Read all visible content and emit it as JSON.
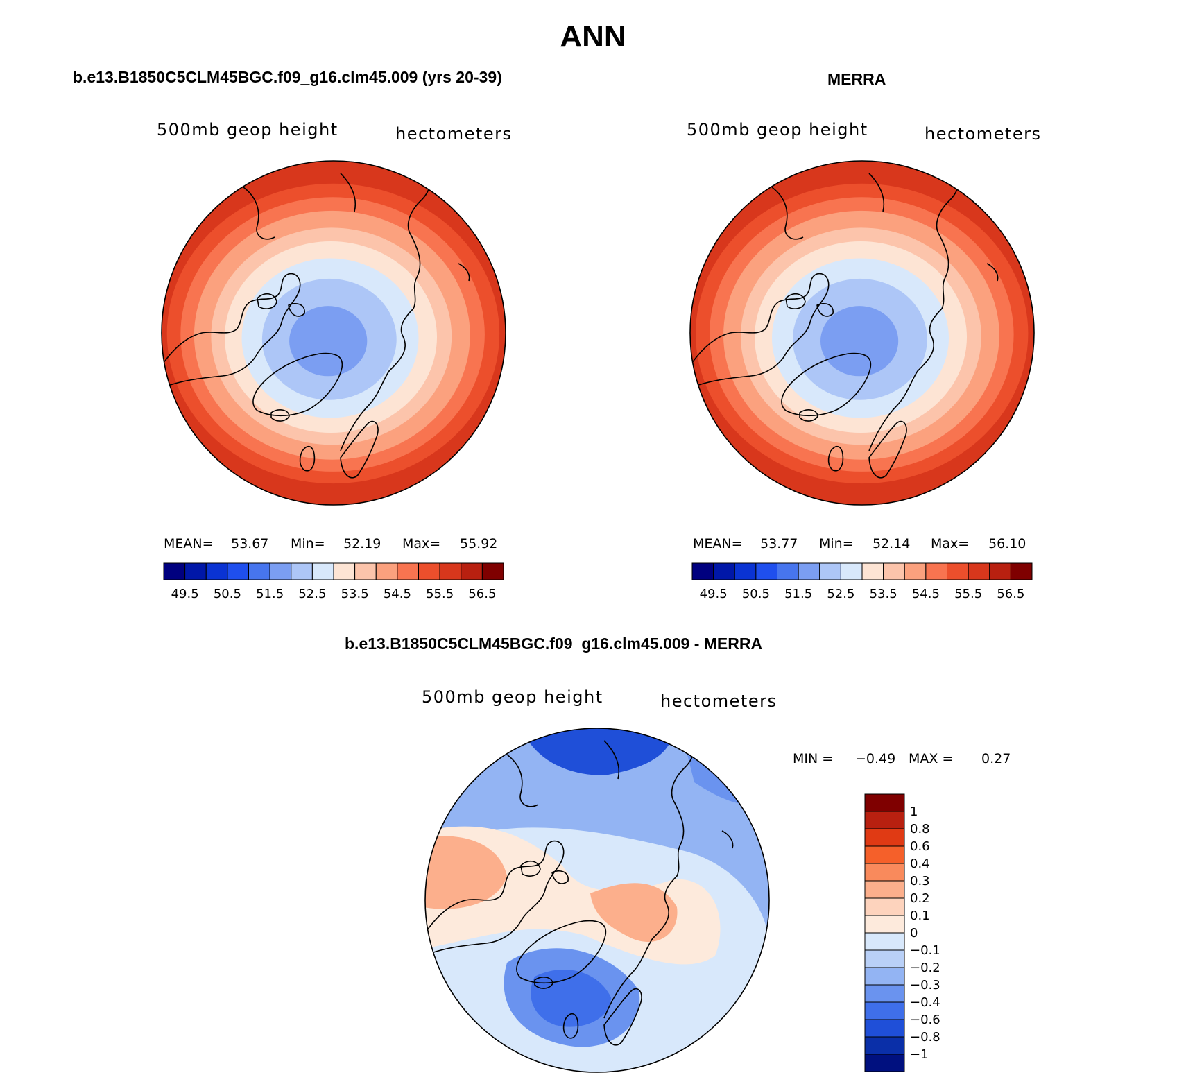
{
  "page": {
    "title": "ANN"
  },
  "chart_data": [
    {
      "type": "map",
      "projection": "north polar stereographic",
      "title": "b.e13.B1850C5CLM45BGC.f09_g16.clm45.009 (yrs 20-39)",
      "variable": "500mb geop height",
      "units": "hectometers",
      "stats": {
        "mean_label": "MEAN=",
        "mean": "53.67",
        "min_label": "Min=",
        "min": "52.19",
        "max_label": "Max=",
        "max": "55.92"
      },
      "colorbar": {
        "levels": [
          "49.5",
          "50.5",
          "51.5",
          "52.5",
          "53.5",
          "54.5",
          "55.5",
          "56.5"
        ],
        "colors": [
          "#00007f",
          "#0017a8",
          "#0a33d3",
          "#1f4fee",
          "#4775ee",
          "#7b9ef2",
          "#adc6f7",
          "#d8e8fb",
          "#fde4d4",
          "#fcc4ab",
          "#fba17e",
          "#f87450",
          "#ec4f2c",
          "#d8371c",
          "#b82010",
          "#7f0000"
        ]
      }
    },
    {
      "type": "map",
      "projection": "north polar stereographic",
      "title": "MERRA",
      "variable": "500mb geop height",
      "units": "hectometers",
      "stats": {
        "mean_label": "MEAN=",
        "mean": "53.77",
        "min_label": "Min=",
        "min": "52.14",
        "max_label": "Max=",
        "max": "56.10"
      },
      "colorbar": {
        "levels": [
          "49.5",
          "50.5",
          "51.5",
          "52.5",
          "53.5",
          "54.5",
          "55.5",
          "56.5"
        ],
        "colors": [
          "#00007f",
          "#0017a8",
          "#0a33d3",
          "#1f4fee",
          "#4775ee",
          "#7b9ef2",
          "#adc6f7",
          "#d8e8fb",
          "#fde4d4",
          "#fcc4ab",
          "#fba17e",
          "#f87450",
          "#ec4f2c",
          "#d8371c",
          "#b82010",
          "#7f0000"
        ]
      }
    },
    {
      "type": "map",
      "projection": "north polar stereographic",
      "title": "b.e13.B1850C5CLM45BGC.f09_g16.clm45.009 - MERRA",
      "variable": "500mb geop height",
      "units": "hectometers",
      "stats": {
        "min_label": "MIN =",
        "min": "−0.49",
        "max_label": "MAX =",
        "max": "0.27"
      },
      "colorbar": {
        "levels": [
          "1",
          "0.8",
          "0.6",
          "0.4",
          "0.3",
          "0.2",
          "0.1",
          "0",
          "−0.1",
          "−0.2",
          "−0.3",
          "−0.4",
          "−0.6",
          "−0.8",
          "−1"
        ],
        "colors": [
          "#7f0000",
          "#b82010",
          "#e03a14",
          "#f5602a",
          "#f98a5c",
          "#fcaf8c",
          "#fdd3bd",
          "#fdeadc",
          "#d8e8fb",
          "#b9d0f7",
          "#93b4f3",
          "#6a93ef",
          "#3f6fea",
          "#1f4fd8",
          "#0a2fa8",
          "#00107f"
        ]
      }
    }
  ]
}
